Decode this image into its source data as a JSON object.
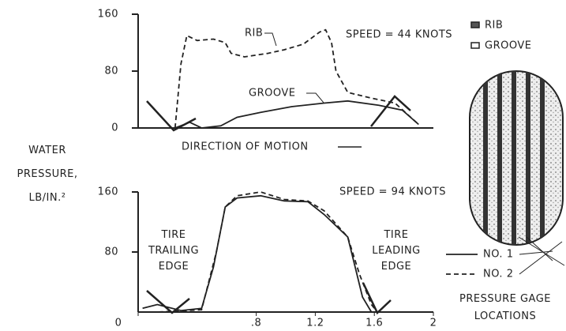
{
  "chart_data": [
    {
      "type": "line",
      "annotation": "SPEED = 44 KNOTS",
      "ylabel": "WATER PRESSURE, LB/IN.²",
      "direction": "DIRECTION OF MOTION",
      "xlim": [
        0,
        2.0
      ],
      "ylim": [
        0,
        160
      ],
      "yticks": [
        0,
        80,
        160
      ],
      "series": [
        {
          "name": "RIB",
          "color": "#222",
          "dash": true,
          "x": [
            0.25,
            0.29,
            0.33,
            0.4,
            0.51,
            0.59,
            0.63,
            0.72,
            0.88,
            0.99,
            1.12,
            1.23,
            1.27,
            1.31,
            1.34,
            1.42,
            1.58,
            1.74,
            1.9
          ],
          "values": [
            0,
            90,
            130,
            123,
            125,
            120,
            105,
            100,
            105,
            110,
            118,
            135,
            138,
            120,
            80,
            50,
            42,
            35,
            5
          ]
        },
        {
          "name": "GROOVE",
          "color": "#222",
          "dash": false,
          "x": [
            0.25,
            0.35,
            0.43,
            0.56,
            0.67,
            0.83,
            1.04,
            1.26,
            1.42,
            1.63,
            1.79,
            1.9
          ],
          "values": [
            0,
            8,
            0,
            3,
            15,
            22,
            30,
            35,
            38,
            32,
            25,
            5
          ]
        }
      ]
    },
    {
      "type": "line",
      "annotation": "SPEED = 94 KNOTS",
      "trailing": "TIRE TRAILING EDGE",
      "leading": "TIRE LEADING EDGE",
      "gage": "PRESSURE GAGE LOCATIONS",
      "xlim": [
        0,
        2.0
      ],
      "ylim": [
        0,
        160
      ],
      "yticks": [
        80,
        160
      ],
      "xticks": [
        0,
        {
          "value": 0.8,
          "label": ".8"
        },
        1.2,
        1.6,
        2.0
      ],
      "series": [
        {
          "name": "NO. 1",
          "color": "#222",
          "dash": false,
          "x": [
            0.03,
            0.13,
            0.29,
            0.43,
            0.51,
            0.59,
            0.67,
            0.83,
            0.99,
            1.15,
            1.26,
            1.42,
            1.47,
            1.52,
            1.58
          ],
          "values": [
            5,
            10,
            2,
            5,
            60,
            140,
            152,
            155,
            148,
            147,
            130,
            100,
            60,
            20,
            0
          ]
        },
        {
          "name": "NO. 2",
          "color": "#222",
          "dash": true,
          "x": [
            0.03,
            0.13,
            0.43,
            0.53,
            0.59,
            0.67,
            0.83,
            0.99,
            1.15,
            1.26,
            1.42,
            1.5,
            1.58,
            1.62
          ],
          "values": [
            0,
            0,
            3,
            80,
            140,
            155,
            160,
            150,
            148,
            135,
            100,
            50,
            10,
            0
          ]
        }
      ]
    }
  ]
}
